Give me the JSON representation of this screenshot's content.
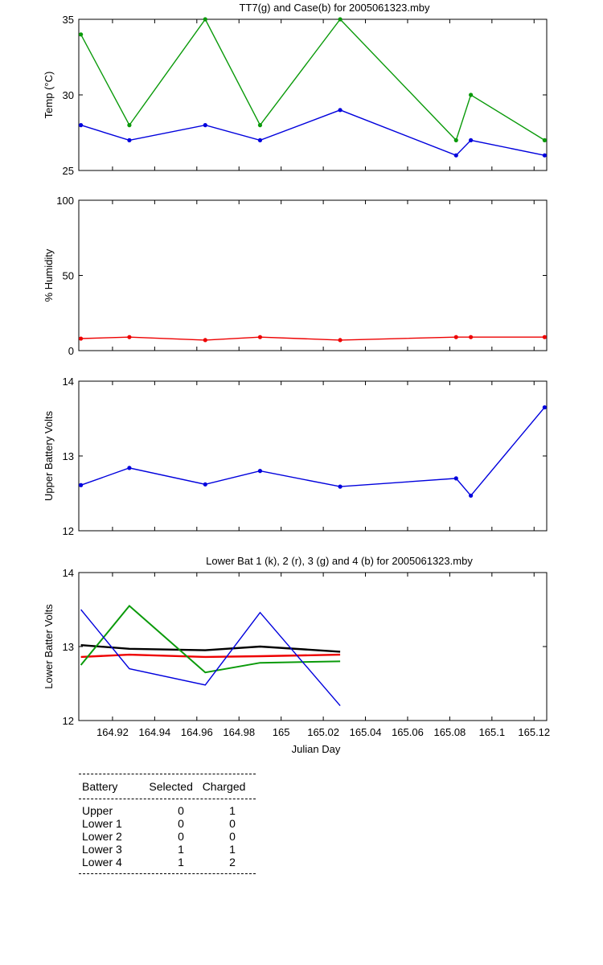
{
  "chart_data": [
    {
      "type": "line",
      "title": "TT7(g) and Case(b) for 2005061323.mby",
      "xlabel": "",
      "ylabel": "Temp (°C)",
      "xlim": [
        164.904,
        165.126
      ],
      "ylim": [
        25,
        35
      ],
      "yticks": [
        25,
        30,
        35
      ],
      "grid": false,
      "series": [
        {
          "color": "#0a9a0a",
          "x": [
            164.905,
            164.928,
            164.964,
            164.99,
            165.028,
            165.083,
            165.09,
            165.125
          ],
          "y": [
            34,
            28,
            35,
            28,
            35,
            27,
            30,
            27
          ]
        },
        {
          "color": "#0000dd",
          "x": [
            164.905,
            164.928,
            164.964,
            164.99,
            165.028,
            165.083,
            165.09,
            165.125
          ],
          "y": [
            28,
            27,
            28,
            27,
            29,
            26,
            27,
            26
          ]
        }
      ]
    },
    {
      "type": "line",
      "title": "",
      "xlabel": "",
      "ylabel": "% Humidity",
      "xlim": [
        164.904,
        165.126
      ],
      "ylim": [
        0,
        100
      ],
      "yticks": [
        0,
        50,
        100
      ],
      "grid": false,
      "series": [
        {
          "color": "#ee0000",
          "x": [
            164.905,
            164.928,
            164.964,
            164.99,
            165.028,
            165.083,
            165.09,
            165.125
          ],
          "y": [
            8,
            9,
            7,
            9,
            7,
            9,
            9,
            9
          ]
        }
      ]
    },
    {
      "type": "line",
      "title": "",
      "xlabel": "",
      "ylabel": "Upper Battery Volts",
      "xlim": [
        164.904,
        165.126
      ],
      "ylim": [
        12,
        14
      ],
      "yticks": [
        12,
        13,
        14
      ],
      "grid": false,
      "series": [
        {
          "color": "#0000dd",
          "x": [
            164.905,
            164.928,
            164.964,
            164.99,
            165.028,
            165.083,
            165.09,
            165.125
          ],
          "y": [
            12.61,
            12.84,
            12.62,
            12.8,
            12.59,
            12.7,
            12.47,
            13.65
          ]
        }
      ]
    },
    {
      "type": "line",
      "title": "Lower Bat 1 (k), 2 (r), 3 (g) and 4 (b) for 2005061323.mby",
      "xlabel": "Julian Day",
      "ylabel": "Lower Batter Volts",
      "xlim": [
        164.904,
        165.126
      ],
      "ylim": [
        12,
        14
      ],
      "yticks": [
        12,
        13,
        14
      ],
      "xticks": [
        164.92,
        164.94,
        164.96,
        164.98,
        165,
        165.02,
        165.04,
        165.06,
        165.08,
        165.1,
        165.12
      ],
      "xticklabels": [
        "164.92",
        "164.94",
        "164.96",
        "164.98",
        "165",
        "165.02",
        "165.04",
        "165.06",
        "165.08",
        "165.1",
        "165.12"
      ],
      "grid": false,
      "series": [
        {
          "color": "#000000",
          "x": [
            164.905,
            164.928,
            164.964,
            164.99,
            165.028
          ],
          "y": [
            13.02,
            12.97,
            12.95,
            13.0,
            12.93
          ]
        },
        {
          "color": "#ee0000",
          "x": [
            164.905,
            164.928,
            164.964,
            164.99,
            165.028
          ],
          "y": [
            12.86,
            12.89,
            12.86,
            12.87,
            12.89
          ]
        },
        {
          "color": "#0a9a0a",
          "x": [
            164.905,
            164.928,
            164.964,
            164.99,
            165.028
          ],
          "y": [
            12.75,
            13.55,
            12.65,
            12.78,
            12.8
          ]
        },
        {
          "color": "#0000dd",
          "x": [
            164.905,
            164.928,
            164.964,
            164.99,
            165.028
          ],
          "y": [
            13.5,
            12.7,
            12.48,
            13.46,
            12.2
          ]
        }
      ]
    }
  ],
  "legend_table": {
    "headers": [
      "Battery",
      "Selected",
      "Charged"
    ],
    "rows": [
      {
        "battery": "Upper",
        "selected": "0",
        "charged": "1"
      },
      {
        "battery": "Lower 1",
        "selected": "0",
        "charged": "0"
      },
      {
        "battery": "Lower 2",
        "selected": "0",
        "charged": "0"
      },
      {
        "battery": "Lower 3",
        "selected": "1",
        "charged": "1"
      },
      {
        "battery": "Lower 4",
        "selected": "1",
        "charged": "2"
      }
    ]
  }
}
